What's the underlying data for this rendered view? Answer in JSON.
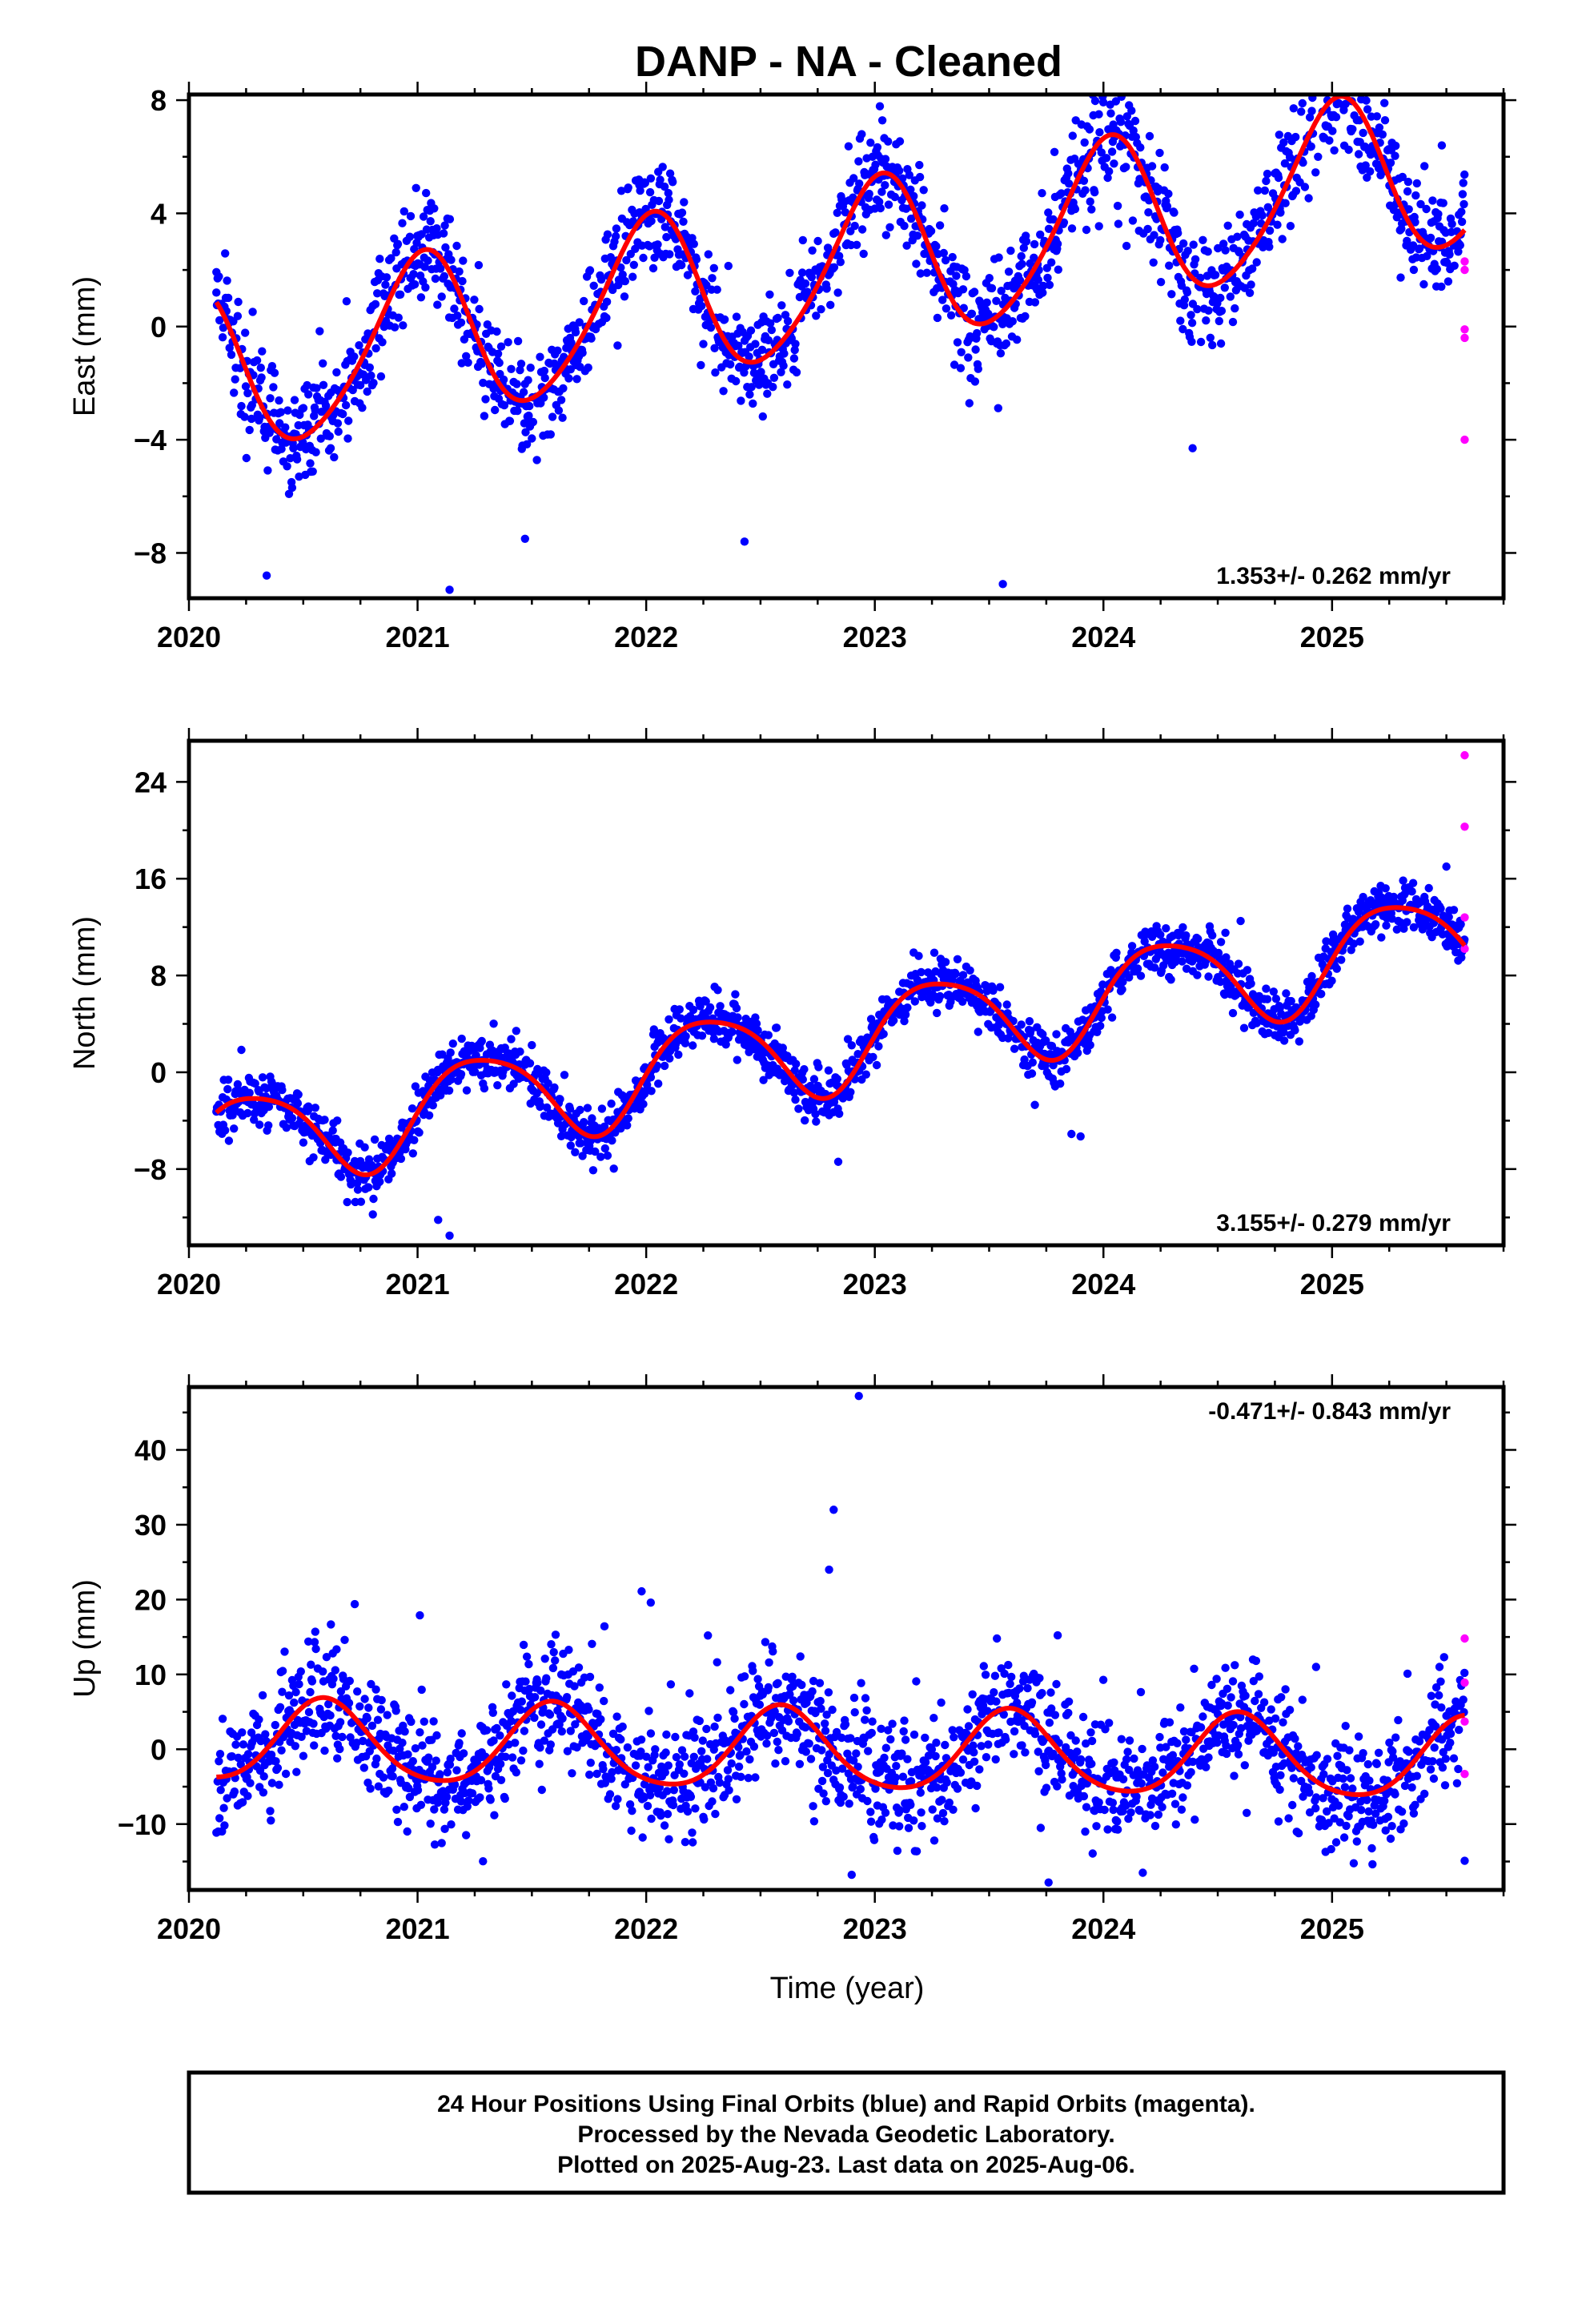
{
  "title": "DANP  - NA - Cleaned",
  "x_axis_label": "Time (year)",
  "footer": {
    "line1": "24 Hour Positions Using Final Orbits (blue) and Rapid Orbits (magenta).",
    "line2": "Processed by the Nevada Geodetic Laboratory.",
    "line3": "Plotted on 2025-Aug-23. Last data on 2025-Aug-06."
  },
  "colors": {
    "final": "#0000ff",
    "rapid": "#ff00ff",
    "model": "#ff0000",
    "frame": "#000000"
  },
  "chart_data": [
    {
      "type": "scatter",
      "component": "east",
      "ylabel": "East (mm)",
      "rate_text": "1.353+/- 0.262 mm/yr",
      "rate_position": "bottom-right",
      "xlim": [
        2020.0,
        2025.75
      ],
      "ylim": [
        -9.6,
        8.2
      ],
      "xticks": [
        2020,
        2021,
        2022,
        2023,
        2024,
        2025
      ],
      "xtick_labels": [
        "2020",
        "2021",
        "2022",
        "2023",
        "2024",
        "2025"
      ],
      "yticks": [
        -8,
        -4,
        0,
        4,
        8
      ],
      "ytick_labels": [
        "−8",
        "−4",
        "0",
        "4",
        "8"
      ],
      "grid": false,
      "data_span": [
        2020.12,
        2025.58
      ],
      "model": {
        "offset": -1.7,
        "rate": 1.353,
        "t0": 2020.12,
        "sin_amp": 0.2,
        "cos_amp": 2.9,
        "sin2_amp": 0.3,
        "cos2_amp": 0.2
      },
      "scatter_sigma": 1.0,
      "series": [
        {
          "name": "Final Orbits",
          "color": "#0000ff"
        },
        {
          "name": "Rapid Orbits",
          "color": "#ff00ff"
        }
      ],
      "rapid_points": [
        [
          2025.58,
          2.3
        ],
        [
          2025.58,
          2.0
        ],
        [
          2025.58,
          -0.1
        ],
        [
          2025.58,
          -0.4
        ],
        [
          2025.58,
          -4.0
        ]
      ],
      "outliers": [
        [
          2020.12,
          1.2
        ],
        [
          2020.34,
          -8.8
        ],
        [
          2020.62,
          -4.3
        ],
        [
          2020.97,
          3.9
        ],
        [
          2021.14,
          -9.3
        ],
        [
          2021.47,
          -7.5
        ],
        [
          2021.97,
          5.0
        ],
        [
          2022.43,
          -7.6
        ],
        [
          2022.99,
          6.0
        ],
        [
          2023.56,
          -9.1
        ],
        [
          2023.98,
          7.5
        ],
        [
          2024.39,
          -4.3
        ],
        [
          2025.05,
          7.8
        ],
        [
          2025.48,
          6.4
        ]
      ]
    },
    {
      "type": "scatter",
      "component": "north",
      "ylabel": "North (mm)",
      "rate_text": "3.155+/- 0.279 mm/yr",
      "rate_position": "bottom-right",
      "xlim": [
        2020.0,
        2025.75
      ],
      "ylim": [
        -14.3,
        27.4
      ],
      "xticks": [
        2020,
        2021,
        2022,
        2023,
        2024,
        2025
      ],
      "xtick_labels": [
        "2020",
        "2021",
        "2022",
        "2023",
        "2024",
        "2025"
      ],
      "yticks": [
        -8,
        0,
        8,
        16,
        24
      ],
      "ytick_labels": [
        "−8",
        "0",
        "8",
        "16",
        "24"
      ],
      "grid": false,
      "data_span": [
        2020.12,
        2025.58
      ],
      "model": {
        "offset": -6.0,
        "rate": 3.155,
        "t0": 2020.12,
        "sin_amp": 3.9,
        "cos_amp": -0.6,
        "sin2_amp": 0.4,
        "cos2_amp": 0.5
      },
      "scatter_sigma": 1.1,
      "series": [
        {
          "name": "Final Orbits",
          "color": "#0000ff"
        },
        {
          "name": "Rapid Orbits",
          "color": "#ff00ff"
        }
      ],
      "rapid_points": [
        [
          2025.58,
          26.2
        ],
        [
          2025.58,
          20.3
        ],
        [
          2025.58,
          12.8
        ],
        [
          2025.58,
          10.2
        ]
      ],
      "outliers": [
        [
          2021.14,
          -13.5
        ],
        [
          2021.09,
          -12.2
        ],
        [
          2023.7,
          -2.7
        ],
        [
          2023.9,
          -5.3
        ],
        [
          2023.86,
          -5.1
        ],
        [
          2022.84,
          -7.4
        ],
        [
          2024.6,
          12.5
        ],
        [
          2025.5,
          17.0
        ]
      ]
    },
    {
      "type": "scatter",
      "component": "up",
      "ylabel": "Up (mm)",
      "rate_text": "-0.471+/- 0.843 mm/yr",
      "rate_position": "top-right",
      "xlim": [
        2020.0,
        2025.75
      ],
      "ylim": [
        -18.8,
        48.4
      ],
      "xticks": [
        2020,
        2021,
        2022,
        2023,
        2024,
        2025
      ],
      "xtick_labels": [
        "2020",
        "2021",
        "2022",
        "2023",
        "2024",
        "2025"
      ],
      "yticks": [
        -10,
        0,
        10,
        20,
        30,
        40
      ],
      "ytick_labels": [
        "−10",
        "0",
        "10",
        "20",
        "30",
        "40"
      ],
      "grid": false,
      "data_span": [
        2020.12,
        2025.58
      ],
      "model": {
        "offset": 1.0,
        "rate": -0.471,
        "t0": 2020.12,
        "sin_amp": -3.0,
        "cos_amp": -4.5,
        "sin2_amp": 0.6,
        "cos2_amp": 0.4
      },
      "scatter_sigma": 4.0,
      "series": [
        {
          "name": "Final Orbits",
          "color": "#0000ff"
        },
        {
          "name": "Rapid Orbits",
          "color": "#ff00ff"
        }
      ],
      "rapid_points": [
        [
          2025.58,
          14.8
        ],
        [
          2025.58,
          8.9
        ],
        [
          2025.58,
          3.7
        ],
        [
          2025.58,
          -3.3
        ]
      ],
      "outliers": [
        [
          2022.93,
          47.2
        ],
        [
          2022.82,
          32.0
        ],
        [
          2022.8,
          24.0
        ],
        [
          2021.98,
          21.1
        ],
        [
          2022.02,
          19.6
        ],
        [
          2021.01,
          17.9
        ],
        [
          2022.27,
          15.2
        ],
        [
          2022.73,
          -7.6
        ],
        [
          2023.76,
          -17.8
        ],
        [
          2025.58,
          -14.9
        ],
        [
          2024.93,
          11.0
        ],
        [
          2025.33,
          10.1
        ],
        [
          2025.49,
          12.3
        ]
      ]
    }
  ]
}
